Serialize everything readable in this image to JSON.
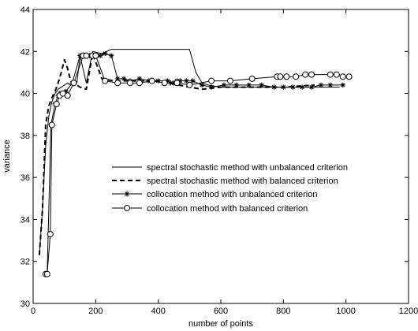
{
  "chart_data": {
    "type": "line",
    "title": "",
    "xlabel": "number of points",
    "ylabel": "variance",
    "xlim": [
      0,
      1200
    ],
    "ylim": [
      30,
      44
    ],
    "xticks": [
      0,
      200,
      400,
      600,
      800,
      1000,
      1200
    ],
    "yticks": [
      30,
      32,
      34,
      36,
      38,
      40,
      42,
      44
    ],
    "grid": false,
    "legend_position": "center-right",
    "series": [
      {
        "name": "spectral stochastic method with unbalanced criterion",
        "style": "solid",
        "marker": "none",
        "x": [
          20,
          30,
          40,
          50,
          60,
          70,
          80,
          90,
          100,
          110,
          120,
          130,
          140,
          150,
          170,
          190,
          220,
          250,
          280,
          310,
          340,
          370,
          400,
          430,
          460,
          480,
          500,
          520,
          540,
          560,
          600,
          700,
          800,
          900,
          980
        ],
        "y": [
          32.3,
          34.5,
          37.5,
          38.9,
          39.6,
          40.0,
          40.2,
          40.3,
          40.4,
          40.5,
          40.4,
          40.5,
          40.5,
          41.8,
          40.5,
          42.0,
          41.9,
          42.1,
          42.1,
          42.1,
          42.1,
          42.1,
          42.1,
          42.1,
          42.1,
          42.1,
          42.1,
          41.0,
          40.5,
          40.4,
          40.3,
          40.3,
          40.3,
          40.3,
          40.3
        ]
      },
      {
        "name": "spectral stochastic method with balanced criterion",
        "style": "dashed",
        "marker": "none",
        "x": [
          20,
          30,
          40,
          50,
          60,
          70,
          80,
          90,
          100,
          110,
          120,
          130,
          150,
          170,
          190,
          220,
          260,
          300,
          400,
          500,
          540,
          600,
          700,
          800,
          900
        ],
        "y": [
          32.3,
          34.5,
          38.5,
          39.4,
          39.8,
          40.1,
          40.5,
          41.0,
          41.6,
          41.2,
          40.6,
          40.5,
          40.3,
          40.2,
          41.9,
          40.7,
          40.6,
          40.6,
          40.6,
          40.3,
          40.2,
          40.3,
          40.3,
          40.3,
          40.4
        ]
      },
      {
        "name": "collocation method with unbalanced criterion",
        "style": "solid",
        "marker": "star",
        "x": [
          42,
          45,
          57,
          70,
          80,
          85,
          95,
          105,
          125,
          150,
          160,
          170,
          180,
          195,
          205,
          215,
          230,
          250,
          270,
          290,
          310,
          340,
          370,
          400,
          430,
          440,
          450,
          460,
          470,
          490,
          510,
          540,
          570,
          610,
          650,
          690,
          730,
          770,
          800,
          830,
          860,
          890,
          920,
          950,
          990
        ],
        "y": [
          31.4,
          31.4,
          38.5,
          39.5,
          39.9,
          40.0,
          40.0,
          40.1,
          40.5,
          41.8,
          41.8,
          41.8,
          41.8,
          41.8,
          41.8,
          41.8,
          41.9,
          41.8,
          40.7,
          40.7,
          40.6,
          40.7,
          40.6,
          40.6,
          40.6,
          40.5,
          40.5,
          40.6,
          40.6,
          40.6,
          40.6,
          40.4,
          40.3,
          40.4,
          40.4,
          40.4,
          40.4,
          40.3,
          40.3,
          40.3,
          40.3,
          40.3,
          40.4,
          40.4,
          40.4
        ]
      },
      {
        "name": "collocation method with balanced criterion",
        "style": "solid",
        "marker": "circle",
        "x": [
          40,
          45,
          55,
          60,
          75,
          85,
          95,
          110,
          130,
          160,
          170,
          190,
          200,
          230,
          270,
          310,
          340,
          380,
          420,
          460,
          500,
          570,
          630,
          700,
          780,
          790,
          810,
          840,
          870,
          890,
          950,
          970,
          990,
          1010
        ],
        "y": [
          31.4,
          31.4,
          33.3,
          38.5,
          39.5,
          39.9,
          40.0,
          39.9,
          40.5,
          41.8,
          41.8,
          41.8,
          41.8,
          40.6,
          40.5,
          40.5,
          40.5,
          40.6,
          40.5,
          40.5,
          40.4,
          40.6,
          40.6,
          40.7,
          40.8,
          40.8,
          40.8,
          40.8,
          40.9,
          40.9,
          40.9,
          40.9,
          40.8,
          40.8
        ]
      }
    ]
  }
}
